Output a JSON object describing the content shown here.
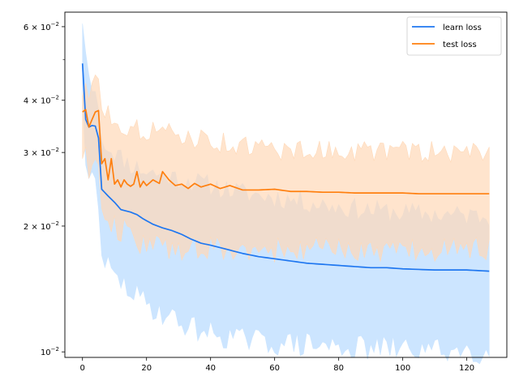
{
  "chart_data": {
    "type": "line",
    "title": "",
    "xlabel": "",
    "ylabel": "",
    "yscale": "log",
    "xlim": [
      -5.5,
      132.5
    ],
    "ylim": [
      0.0097,
      0.065
    ],
    "x_ticks": [
      0,
      20,
      40,
      60,
      80,
      100,
      120
    ],
    "x_tick_labels": [
      "0",
      "20",
      "40",
      "60",
      "80",
      "100",
      "120"
    ],
    "y_major_ticks": [
      0.01,
      0.02,
      0.03,
      0.04,
      0.06
    ],
    "y_tick_labels": [
      {
        "mantissa": "10",
        "exp": "−2"
      },
      {
        "mantissa": "2 × 10",
        "exp": "−2"
      },
      {
        "mantissa": "3 × 10",
        "exp": "−2"
      },
      {
        "mantissa": "4 × 10",
        "exp": "−2"
      },
      {
        "mantissa": "6 × 10",
        "exp": "−2"
      }
    ],
    "y_minor_ticks": [
      0.05
    ],
    "legend_position": "top-right",
    "series": [
      {
        "name": "learn loss",
        "color": "#1f77f0",
        "band_color": "#cce5ff",
        "mean_key": [
          [
            0,
            0.049
          ],
          [
            1,
            0.036
          ],
          [
            2,
            0.0345
          ],
          [
            3,
            0.0348
          ],
          [
            4,
            0.0347
          ],
          [
            5,
            0.0325
          ],
          [
            6,
            0.0245
          ],
          [
            8,
            0.0236
          ],
          [
            10,
            0.0228
          ],
          [
            12,
            0.0219
          ],
          [
            15,
            0.0216
          ],
          [
            17,
            0.0213
          ],
          [
            19,
            0.0208
          ],
          [
            22,
            0.0202
          ],
          [
            25,
            0.0198
          ],
          [
            28,
            0.0195
          ],
          [
            31,
            0.0191
          ],
          [
            34,
            0.0186
          ],
          [
            37,
            0.0182
          ],
          [
            40,
            0.018
          ],
          [
            45,
            0.0176
          ],
          [
            50,
            0.0172
          ],
          [
            55,
            0.0169
          ],
          [
            60,
            0.0167
          ],
          [
            65,
            0.0165
          ],
          [
            70,
            0.0163
          ],
          [
            75,
            0.0162
          ],
          [
            80,
            0.0161
          ],
          [
            85,
            0.016
          ],
          [
            90,
            0.0159
          ],
          [
            95,
            0.0159
          ],
          [
            100,
            0.0158
          ],
          [
            110,
            0.0157
          ],
          [
            120,
            0.0157
          ],
          [
            127,
            0.0156
          ]
        ],
        "upper_key": [
          [
            0,
            0.061
          ],
          [
            1,
            0.052
          ],
          [
            2,
            0.046
          ],
          [
            3,
            0.042
          ],
          [
            4,
            0.042
          ],
          [
            5,
            0.038
          ],
          [
            6,
            0.032
          ],
          [
            10,
            0.03
          ],
          [
            15,
            0.028
          ],
          [
            20,
            0.027
          ],
          [
            25,
            0.0265
          ],
          [
            30,
            0.026
          ],
          [
            40,
            0.025
          ],
          [
            50,
            0.024
          ],
          [
            60,
            0.0234
          ],
          [
            70,
            0.0228
          ],
          [
            80,
            0.0222
          ],
          [
            90,
            0.0218
          ],
          [
            100,
            0.0215
          ],
          [
            110,
            0.0213
          ],
          [
            120,
            0.0212
          ],
          [
            127,
            0.0211
          ]
        ],
        "lower_key": [
          [
            0,
            0.041
          ],
          [
            1,
            0.028
          ],
          [
            2,
            0.026
          ],
          [
            3,
            0.027
          ],
          [
            4,
            0.026
          ],
          [
            5,
            0.022
          ],
          [
            6,
            0.017
          ],
          [
            8,
            0.016
          ],
          [
            10,
            0.015
          ],
          [
            15,
            0.014
          ],
          [
            20,
            0.013
          ],
          [
            25,
            0.0124
          ],
          [
            30,
            0.0118
          ],
          [
            35,
            0.0114
          ],
          [
            40,
            0.0111
          ],
          [
            45,
            0.0109
          ],
          [
            50,
            0.0107
          ],
          [
            60,
            0.0105
          ],
          [
            70,
            0.0104
          ],
          [
            80,
            0.0103
          ],
          [
            90,
            0.0102
          ],
          [
            100,
            0.0102
          ],
          [
            110,
            0.0101
          ],
          [
            120,
            0.0101
          ],
          [
            126,
            0.01
          ],
          [
            127,
            0.0103
          ]
        ]
      },
      {
        "name": "test loss",
        "color": "#ff7f0e",
        "band_color": "#ffd9b8",
        "mean_key": [
          [
            0,
            0.0375
          ],
          [
            1,
            0.038
          ],
          [
            2,
            0.0345
          ],
          [
            3,
            0.036
          ],
          [
            4,
            0.0375
          ],
          [
            5,
            0.0378
          ],
          [
            6,
            0.0282
          ],
          [
            7,
            0.029
          ],
          [
            8,
            0.0258
          ],
          [
            9,
            0.029
          ],
          [
            10,
            0.0252
          ],
          [
            11,
            0.0258
          ],
          [
            12,
            0.0248
          ],
          [
            13,
            0.0258
          ],
          [
            14,
            0.0252
          ],
          [
            15,
            0.0249
          ],
          [
            16,
            0.0252
          ],
          [
            17,
            0.027
          ],
          [
            18,
            0.0248
          ],
          [
            19,
            0.0256
          ],
          [
            20,
            0.025
          ],
          [
            22,
            0.0258
          ],
          [
            24,
            0.0253
          ],
          [
            25,
            0.027
          ],
          [
            27,
            0.0258
          ],
          [
            29,
            0.025
          ],
          [
            31,
            0.0252
          ],
          [
            33,
            0.0246
          ],
          [
            35,
            0.0253
          ],
          [
            37,
            0.0248
          ],
          [
            40,
            0.0252
          ],
          [
            43,
            0.0246
          ],
          [
            46,
            0.025
          ],
          [
            50,
            0.0244
          ],
          [
            55,
            0.0244
          ],
          [
            60,
            0.0245
          ],
          [
            65,
            0.0242
          ],
          [
            70,
            0.0242
          ],
          [
            75,
            0.0241
          ],
          [
            80,
            0.0241
          ],
          [
            85,
            0.024
          ],
          [
            90,
            0.024
          ],
          [
            95,
            0.024
          ],
          [
            100,
            0.024
          ],
          [
            105,
            0.0239
          ],
          [
            110,
            0.0239
          ],
          [
            115,
            0.0239
          ],
          [
            120,
            0.0239
          ],
          [
            127,
            0.0239
          ]
        ],
        "upper_key": [
          [
            0,
            0.041
          ],
          [
            1,
            0.044
          ],
          [
            2,
            0.04
          ],
          [
            3,
            0.044
          ],
          [
            4,
            0.046
          ],
          [
            5,
            0.045
          ],
          [
            6,
            0.038
          ],
          [
            10,
            0.036
          ],
          [
            15,
            0.034
          ],
          [
            20,
            0.034
          ],
          [
            30,
            0.033
          ],
          [
            40,
            0.032
          ],
          [
            50,
            0.031
          ],
          [
            60,
            0.0305
          ],
          [
            80,
            0.0303
          ],
          [
            100,
            0.0302
          ],
          [
            120,
            0.03
          ],
          [
            127,
            0.0302
          ]
        ],
        "lower_key": [
          [
            0,
            0.029
          ],
          [
            1,
            0.031
          ],
          [
            2,
            0.026
          ],
          [
            3,
            0.028
          ],
          [
            4,
            0.029
          ],
          [
            5,
            0.028
          ],
          [
            6,
            0.022
          ],
          [
            10,
            0.02
          ],
          [
            15,
            0.019
          ],
          [
            20,
            0.018
          ],
          [
            30,
            0.0178
          ],
          [
            40,
            0.0176
          ],
          [
            50,
            0.0175
          ],
          [
            60,
            0.0175
          ],
          [
            80,
            0.0176
          ],
          [
            100,
            0.0175
          ],
          [
            120,
            0.0176
          ],
          [
            127,
            0.0177
          ]
        ]
      }
    ]
  }
}
